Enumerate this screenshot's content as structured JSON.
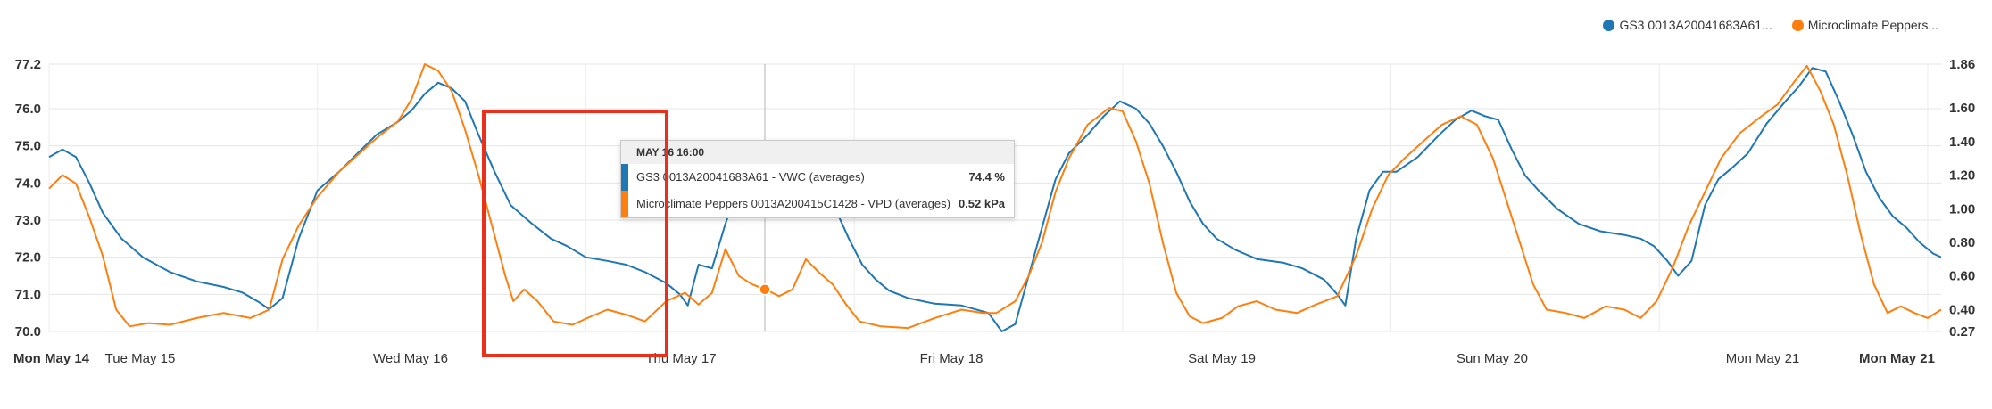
{
  "legend": [
    {
      "label": "GS3 0013A20041683A61...",
      "color": "#1f77b4"
    },
    {
      "label": "Microclimate Peppers...",
      "color": "#ff7f0e"
    }
  ],
  "tooltip": {
    "header": "MAY 16 16:00",
    "rows": [
      {
        "label": "GS3 0013A20041683A61 - VWC (averages)",
        "value": "74.4 %",
        "color": "#1f77b4"
      },
      {
        "label": "Microclimate Peppers 0013A200415C1428 - VPD (averages)",
        "value": "0.52 kPa",
        "color": "#ff7f0e"
      }
    ]
  },
  "chart_data": {
    "type": "line",
    "x_labels": [
      {
        "label": "Mon May 14",
        "bold": true
      },
      {
        "label": "Tue May 15",
        "bold": false
      },
      {
        "label": "Wed May 16",
        "bold": false
      },
      {
        "label": "Thu May 17",
        "bold": false
      },
      {
        "label": "Fri May 18",
        "bold": false
      },
      {
        "label": "Sat May 19",
        "bold": false
      },
      {
        "label": "Sun May 20",
        "bold": false
      },
      {
        "label": "Mon May 21",
        "bold": false
      },
      {
        "label": "Mon May 21",
        "bold": true
      }
    ],
    "y_left_ticks": [
      "77.2",
      "76.0",
      "75.0",
      "74.0",
      "73.0",
      "72.0",
      "71.0",
      "70.0"
    ],
    "y_left_range": [
      70.0,
      77.2
    ],
    "y_right_ticks": [
      "1.86",
      "1.60",
      "1.40",
      "1.20",
      "1.00",
      "0.80",
      "0.60",
      "0.40",
      "0.27"
    ],
    "y_right_range": [
      0.27,
      1.86
    ],
    "x_range_days": [
      0,
      7.05
    ],
    "tooltip_x_day": 2.667,
    "series": [
      {
        "name": "GS3 0013A20041683A61 - VWC (averages)",
        "color": "#1f77b4",
        "axis": "left",
        "points": [
          [
            0,
            74.7
          ],
          [
            0.05,
            74.9
          ],
          [
            0.1,
            74.7
          ],
          [
            0.15,
            74.0
          ],
          [
            0.2,
            73.2
          ],
          [
            0.27,
            72.5
          ],
          [
            0.35,
            72.0
          ],
          [
            0.45,
            71.6
          ],
          [
            0.55,
            71.35
          ],
          [
            0.65,
            71.2
          ],
          [
            0.72,
            71.05
          ],
          [
            0.78,
            70.8
          ],
          [
            0.82,
            70.6
          ],
          [
            0.87,
            70.9
          ],
          [
            0.93,
            72.5
          ],
          [
            1.0,
            73.8
          ],
          [
            1.08,
            74.3
          ],
          [
            1.15,
            74.8
          ],
          [
            1.22,
            75.3
          ],
          [
            1.3,
            75.65
          ],
          [
            1.35,
            75.95
          ],
          [
            1.4,
            76.4
          ],
          [
            1.45,
            76.7
          ],
          [
            1.5,
            76.55
          ],
          [
            1.55,
            76.2
          ],
          [
            1.6,
            75.3
          ],
          [
            1.66,
            74.3
          ],
          [
            1.72,
            73.4
          ],
          [
            1.8,
            72.9
          ],
          [
            1.87,
            72.5
          ],
          [
            1.93,
            72.3
          ],
          [
            2.0,
            72.0
          ],
          [
            2.08,
            71.9
          ],
          [
            2.15,
            71.8
          ],
          [
            2.22,
            71.6
          ],
          [
            2.3,
            71.3
          ],
          [
            2.35,
            71.0
          ],
          [
            2.38,
            70.7
          ],
          [
            2.42,
            71.8
          ],
          [
            2.47,
            71.7
          ],
          [
            2.52,
            72.9
          ],
          [
            2.57,
            73.9
          ],
          [
            2.62,
            74.1
          ],
          [
            2.67,
            74.3
          ],
          [
            2.72,
            74.4
          ],
          [
            2.77,
            73.9
          ],
          [
            2.82,
            74.4
          ],
          [
            2.87,
            74.1
          ],
          [
            2.93,
            73.3
          ],
          [
            2.98,
            72.5
          ],
          [
            3.03,
            71.8
          ],
          [
            3.08,
            71.4
          ],
          [
            3.13,
            71.1
          ],
          [
            3.2,
            70.9
          ],
          [
            3.3,
            70.75
          ],
          [
            3.4,
            70.7
          ],
          [
            3.5,
            70.5
          ],
          [
            3.55,
            70.0
          ],
          [
            3.6,
            70.2
          ],
          [
            3.65,
            71.5
          ],
          [
            3.7,
            72.8
          ],
          [
            3.75,
            74.1
          ],
          [
            3.8,
            74.8
          ],
          [
            3.87,
            75.3
          ],
          [
            3.93,
            75.8
          ],
          [
            3.99,
            76.2
          ],
          [
            4.05,
            76.0
          ],
          [
            4.1,
            75.6
          ],
          [
            4.15,
            75.0
          ],
          [
            4.2,
            74.3
          ],
          [
            4.25,
            73.5
          ],
          [
            4.3,
            72.9
          ],
          [
            4.35,
            72.5
          ],
          [
            4.42,
            72.2
          ],
          [
            4.5,
            71.95
          ],
          [
            4.6,
            71.85
          ],
          [
            4.67,
            71.7
          ],
          [
            4.75,
            71.4
          ],
          [
            4.8,
            71.0
          ],
          [
            4.83,
            70.7
          ],
          [
            4.87,
            72.5
          ],
          [
            4.92,
            73.8
          ],
          [
            4.97,
            74.3
          ],
          [
            5.02,
            74.3
          ],
          [
            5.1,
            74.7
          ],
          [
            5.18,
            75.3
          ],
          [
            5.24,
            75.7
          ],
          [
            5.3,
            75.95
          ],
          [
            5.35,
            75.8
          ],
          [
            5.4,
            75.7
          ],
          [
            5.45,
            74.9
          ],
          [
            5.5,
            74.2
          ],
          [
            5.55,
            73.8
          ],
          [
            5.62,
            73.3
          ],
          [
            5.7,
            72.9
          ],
          [
            5.78,
            72.7
          ],
          [
            5.87,
            72.6
          ],
          [
            5.93,
            72.5
          ],
          [
            5.98,
            72.3
          ],
          [
            6.03,
            71.9
          ],
          [
            6.07,
            71.5
          ],
          [
            6.12,
            71.9
          ],
          [
            6.17,
            73.4
          ],
          [
            6.22,
            74.1
          ],
          [
            6.27,
            74.4
          ],
          [
            6.33,
            74.8
          ],
          [
            6.4,
            75.6
          ],
          [
            6.47,
            76.2
          ],
          [
            6.52,
            76.6
          ],
          [
            6.57,
            77.1
          ],
          [
            6.62,
            77.0
          ],
          [
            6.67,
            76.2
          ],
          [
            6.72,
            75.3
          ],
          [
            6.77,
            74.3
          ],
          [
            6.82,
            73.6
          ],
          [
            6.87,
            73.1
          ],
          [
            6.92,
            72.8
          ],
          [
            6.97,
            72.4
          ],
          [
            7.02,
            72.1
          ],
          [
            7.05,
            72.0
          ]
        ]
      },
      {
        "name": "Microclimate Peppers 0013A200415C1428 - VPD (averages)",
        "color": "#ff7f0e",
        "axis": "right",
        "points": [
          [
            0,
            1.12
          ],
          [
            0.05,
            1.2
          ],
          [
            0.1,
            1.15
          ],
          [
            0.15,
            0.95
          ],
          [
            0.2,
            0.72
          ],
          [
            0.25,
            0.4
          ],
          [
            0.3,
            0.3
          ],
          [
            0.37,
            0.32
          ],
          [
            0.45,
            0.31
          ],
          [
            0.55,
            0.35
          ],
          [
            0.65,
            0.38
          ],
          [
            0.75,
            0.35
          ],
          [
            0.82,
            0.4
          ],
          [
            0.87,
            0.7
          ],
          [
            0.93,
            0.9
          ],
          [
            1.0,
            1.07
          ],
          [
            1.08,
            1.22
          ],
          [
            1.15,
            1.32
          ],
          [
            1.22,
            1.42
          ],
          [
            1.3,
            1.52
          ],
          [
            1.35,
            1.65
          ],
          [
            1.4,
            1.86
          ],
          [
            1.45,
            1.82
          ],
          [
            1.5,
            1.7
          ],
          [
            1.55,
            1.47
          ],
          [
            1.6,
            1.2
          ],
          [
            1.65,
            0.9
          ],
          [
            1.7,
            0.6
          ],
          [
            1.73,
            0.45
          ],
          [
            1.77,
            0.52
          ],
          [
            1.82,
            0.45
          ],
          [
            1.88,
            0.33
          ],
          [
            1.95,
            0.31
          ],
          [
            2.02,
            0.36
          ],
          [
            2.08,
            0.4
          ],
          [
            2.15,
            0.37
          ],
          [
            2.22,
            0.33
          ],
          [
            2.3,
            0.45
          ],
          [
            2.37,
            0.5
          ],
          [
            2.42,
            0.43
          ],
          [
            2.47,
            0.5
          ],
          [
            2.52,
            0.76
          ],
          [
            2.57,
            0.6
          ],
          [
            2.62,
            0.55
          ],
          [
            2.67,
            0.52
          ],
          [
            2.72,
            0.48
          ],
          [
            2.77,
            0.52
          ],
          [
            2.82,
            0.7
          ],
          [
            2.87,
            0.62
          ],
          [
            2.92,
            0.55
          ],
          [
            2.97,
            0.43
          ],
          [
            3.02,
            0.33
          ],
          [
            3.1,
            0.3
          ],
          [
            3.2,
            0.29
          ],
          [
            3.3,
            0.35
          ],
          [
            3.4,
            0.4
          ],
          [
            3.48,
            0.38
          ],
          [
            3.53,
            0.38
          ],
          [
            3.6,
            0.45
          ],
          [
            3.65,
            0.6
          ],
          [
            3.7,
            0.8
          ],
          [
            3.75,
            1.1
          ],
          [
            3.8,
            1.3
          ],
          [
            3.87,
            1.5
          ],
          [
            3.95,
            1.6
          ],
          [
            4.0,
            1.58
          ],
          [
            4.05,
            1.4
          ],
          [
            4.1,
            1.15
          ],
          [
            4.15,
            0.8
          ],
          [
            4.2,
            0.5
          ],
          [
            4.25,
            0.36
          ],
          [
            4.3,
            0.32
          ],
          [
            4.37,
            0.35
          ],
          [
            4.43,
            0.42
          ],
          [
            4.5,
            0.45
          ],
          [
            4.57,
            0.4
          ],
          [
            4.65,
            0.38
          ],
          [
            4.72,
            0.43
          ],
          [
            4.8,
            0.48
          ],
          [
            4.87,
            0.72
          ],
          [
            4.93,
            1.0
          ],
          [
            4.99,
            1.2
          ],
          [
            5.05,
            1.3
          ],
          [
            5.12,
            1.4
          ],
          [
            5.19,
            1.5
          ],
          [
            5.26,
            1.55
          ],
          [
            5.32,
            1.5
          ],
          [
            5.38,
            1.3
          ],
          [
            5.43,
            1.05
          ],
          [
            5.48,
            0.8
          ],
          [
            5.53,
            0.55
          ],
          [
            5.58,
            0.4
          ],
          [
            5.65,
            0.38
          ],
          [
            5.72,
            0.35
          ],
          [
            5.8,
            0.42
          ],
          [
            5.87,
            0.4
          ],
          [
            5.93,
            0.35
          ],
          [
            5.99,
            0.45
          ],
          [
            6.05,
            0.65
          ],
          [
            6.11,
            0.9
          ],
          [
            6.17,
            1.1
          ],
          [
            6.23,
            1.3
          ],
          [
            6.3,
            1.45
          ],
          [
            6.38,
            1.55
          ],
          [
            6.44,
            1.62
          ],
          [
            6.5,
            1.75
          ],
          [
            6.55,
            1.85
          ],
          [
            6.6,
            1.7
          ],
          [
            6.65,
            1.5
          ],
          [
            6.7,
            1.2
          ],
          [
            6.75,
            0.85
          ],
          [
            6.8,
            0.55
          ],
          [
            6.85,
            0.38
          ],
          [
            6.9,
            0.42
          ],
          [
            6.95,
            0.38
          ],
          [
            7.0,
            0.35
          ],
          [
            7.05,
            0.4
          ]
        ]
      }
    ]
  }
}
